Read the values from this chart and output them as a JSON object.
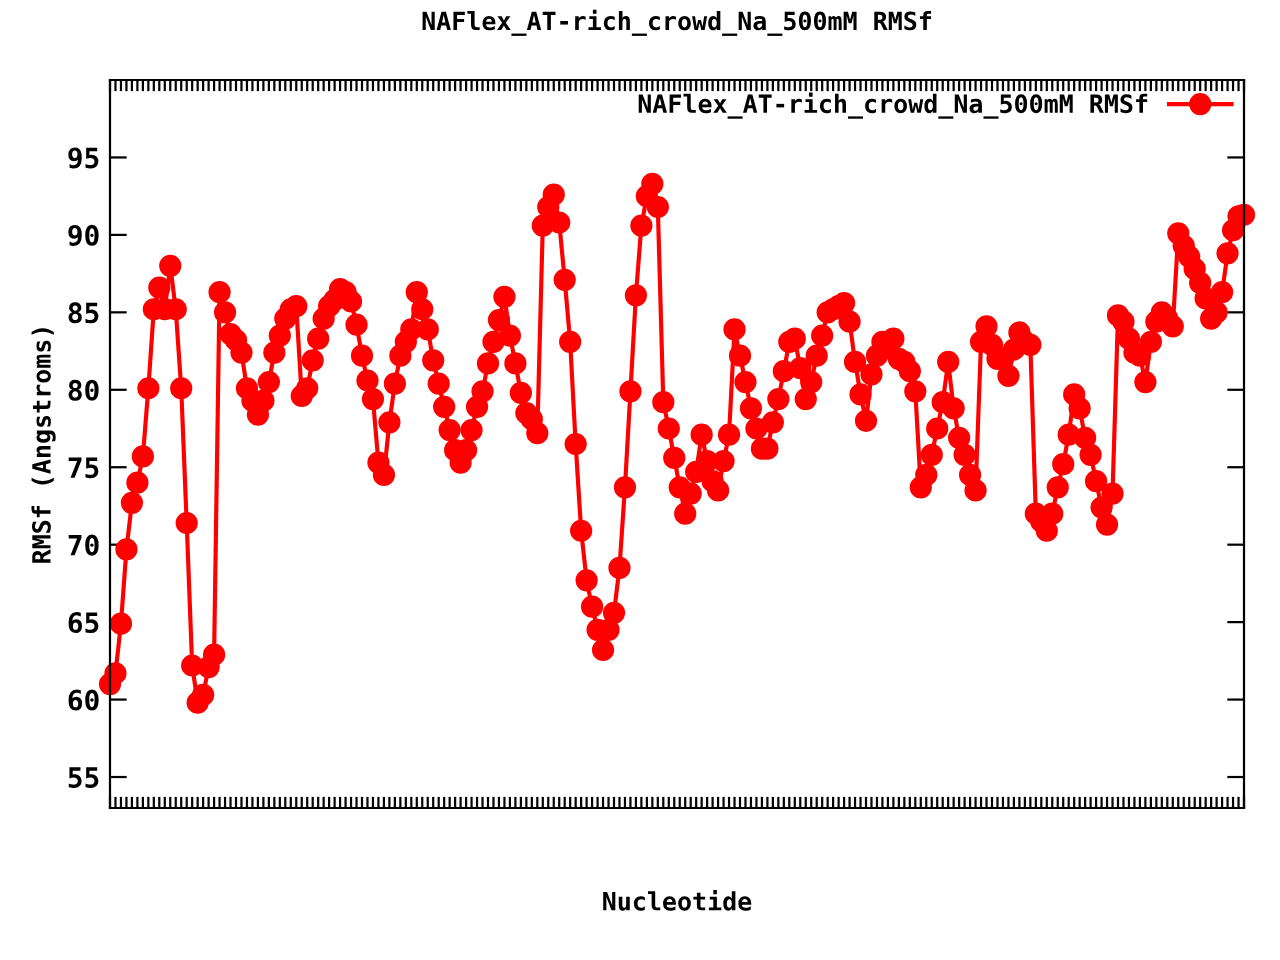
{
  "chart_data": {
    "type": "line",
    "title": "NAFlex_AT-rich_crowd_Na_500mM RMSf",
    "xlabel": "Nucleotide",
    "ylabel": "RMSf (Angstroms)",
    "categories": [
      null,
      null,
      null,
      null,
      null,
      null,
      null,
      null,
      null,
      null,
      null,
      null,
      null,
      null,
      null,
      null,
      null,
      null,
      null,
      null,
      null,
      null,
      null,
      null,
      null,
      null,
      null,
      null,
      null,
      null,
      null,
      null,
      null,
      null,
      null,
      null,
      null,
      null,
      null,
      null,
      null,
      null,
      null,
      null,
      null,
      null,
      null,
      null,
      null,
      null,
      null,
      null,
      null,
      null,
      null,
      null,
      null,
      null,
      null,
      null,
      null,
      null,
      null,
      null,
      null,
      null,
      null,
      null,
      null,
      null,
      null,
      null,
      null,
      null,
      null,
      null,
      null,
      null,
      null,
      null,
      null,
      null,
      null,
      null,
      null,
      null,
      null,
      null,
      null,
      null,
      null,
      null,
      null,
      null,
      null,
      null,
      null,
      null,
      null,
      null,
      null,
      null,
      null,
      null,
      null,
      null,
      null,
      null,
      null,
      null,
      null,
      null,
      null,
      null,
      null,
      null,
      null,
      null,
      null,
      null,
      null,
      null,
      null,
      null,
      null,
      null,
      null,
      null,
      null,
      null,
      null,
      null,
      null,
      null,
      null,
      null,
      null,
      null,
      null,
      null,
      null,
      null,
      null,
      null,
      null,
      null,
      null,
      null,
      null,
      null,
      null,
      null,
      null,
      null,
      null,
      null,
      null,
      null,
      null,
      null,
      null,
      null,
      null,
      null,
      null,
      null,
      null,
      null,
      null,
      null,
      null,
      null,
      null,
      null,
      null,
      null,
      null,
      null,
      null,
      null,
      null,
      null,
      null,
      null,
      null,
      null,
      null,
      null,
      null,
      null,
      null,
      null,
      null,
      null,
      null,
      null,
      null,
      null,
      null,
      null,
      null,
      null,
      null,
      null,
      null,
      null,
      null,
      null
    ],
    "series": [
      {
        "name": "NAFlex_AT-rich_crowd_Na_500mM RMSf",
        "color": "#ff0000",
        "values": [
          61.0,
          61.7,
          64.9,
          69.7,
          72.7,
          74.0,
          75.7,
          80.1,
          85.2,
          86.6,
          85.2,
          88.0,
          85.2,
          80.1,
          71.4,
          62.2,
          59.8,
          60.3,
          62.1,
          62.9,
          86.3,
          85.0,
          83.6,
          83.2,
          82.4,
          80.1,
          79.3,
          78.4,
          79.3,
          80.5,
          82.4,
          83.5,
          84.6,
          85.2,
          85.4,
          79.6,
          80.1,
          81.9,
          83.3,
          84.6,
          85.4,
          85.8,
          86.5,
          86.3,
          85.7,
          84.2,
          82.2,
          80.6,
          79.4,
          75.3,
          74.5,
          77.9,
          80.4,
          82.2,
          83.1,
          83.9,
          86.3,
          85.2,
          83.9,
          81.9,
          80.4,
          78.9,
          77.4,
          76.1,
          75.3,
          76.1,
          77.4,
          78.9,
          79.9,
          81.7,
          83.1,
          84.5,
          86.0,
          83.5,
          81.7,
          79.8,
          78.5,
          78.1,
          77.2,
          90.6,
          91.8,
          92.6,
          90.8,
          87.1,
          83.1,
          76.5,
          70.9,
          67.7,
          66.0,
          64.5,
          63.2,
          64.5,
          65.6,
          68.5,
          73.7,
          79.9,
          86.1,
          90.6,
          92.5,
          93.3,
          91.8,
          79.2,
          77.5,
          75.6,
          73.7,
          72.0,
          73.3,
          74.7,
          77.1,
          75.4,
          74.1,
          73.5,
          75.4,
          77.1,
          83.9,
          82.2,
          80.5,
          78.8,
          77.5,
          76.2,
          76.2,
          77.9,
          79.4,
          81.2,
          83.1,
          83.3,
          81.4,
          79.4,
          80.5,
          82.2,
          83.5,
          85.0,
          85.2,
          85.4,
          85.6,
          84.4,
          81.8,
          79.7,
          78.0,
          81.0,
          82.2,
          83.1,
          82.7,
          83.3,
          82.0,
          81.8,
          81.2,
          79.9,
          73.7,
          74.5,
          75.8,
          77.5,
          79.2,
          81.8,
          78.8,
          76.9,
          75.8,
          74.5,
          73.5,
          83.1,
          84.1,
          82.9,
          82.0,
          82.0,
          80.9,
          82.6,
          83.7,
          83.1,
          82.9,
          72.0,
          71.5,
          70.9,
          72.0,
          73.7,
          75.2,
          77.1,
          79.7,
          78.8,
          76.9,
          75.8,
          74.1,
          72.4,
          71.3,
          73.3,
          84.8,
          84.4,
          83.3,
          82.4,
          82.2,
          80.5,
          83.1,
          84.4,
          85.0,
          84.6,
          84.1,
          90.1,
          89.3,
          88.6,
          87.8,
          86.9,
          85.9,
          84.6,
          85.0,
          86.3,
          88.8,
          90.3,
          91.2,
          91.3
        ]
      }
    ],
    "ylim": [
      53,
      100
    ],
    "yticks": [
      55,
      60,
      65,
      70,
      75,
      80,
      85,
      90,
      95
    ],
    "marker": "circle",
    "line_style": "solid",
    "legend": "top right",
    "grid": false,
    "tick_labels": "y"
  }
}
